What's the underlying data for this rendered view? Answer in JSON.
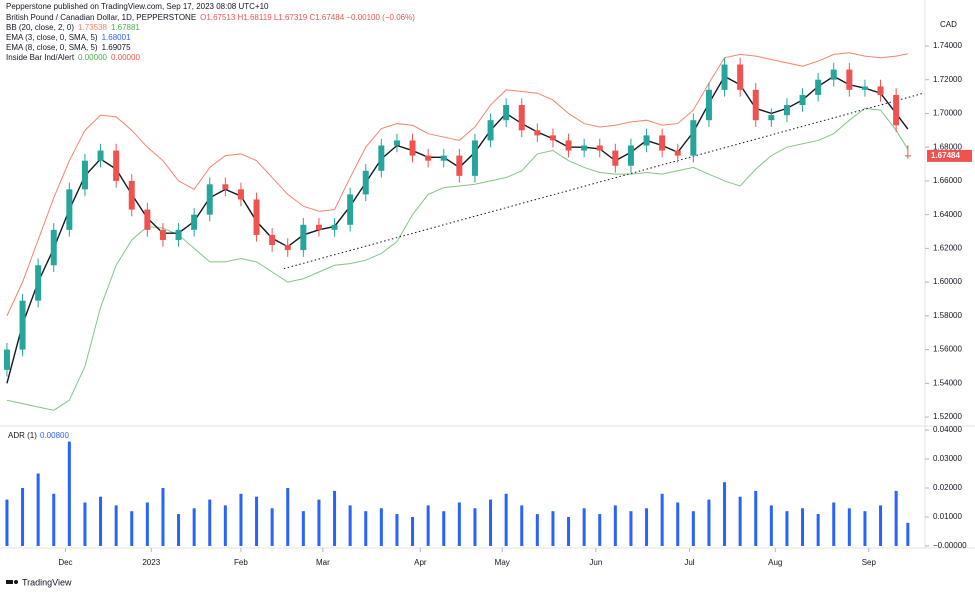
{
  "publisher": "Pepperstone published on TradingView.com, Sep 17, 2023 08:08 UTC+10",
  "currency": "CAD",
  "footer": "TradingView",
  "legend": [
    {
      "label": "British Pound / Canadian Dollar, 1D, PEPPERSTONE",
      "values": [
        {
          "text": "O1.67513 H1.68119 L1.67319 C1.67484 −0.00100 (−0.06%)",
          "color": "#ef5350"
        }
      ]
    },
    {
      "label": "BB (20, close, 2, 0)",
      "values": [
        {
          "text": "1.73538",
          "color": "#f5836b"
        },
        {
          "text": "1.67881",
          "color": "#4caf50"
        }
      ]
    },
    {
      "label": "EMA (3, close, 0, SMA, 5)",
      "values": [
        {
          "text": "1.68001",
          "color": "#2962ff"
        }
      ]
    },
    {
      "label": "EMA (8, close, 0, SMA, 5)",
      "values": [
        {
          "text": "1.69075",
          "color": "#131722"
        }
      ]
    },
    {
      "label": "Inside Bar Ind/Alert",
      "values": [
        {
          "text": "0.00000",
          "color": "#4caf50"
        },
        {
          "text": "0.00000",
          "color": "#ef5350"
        }
      ]
    }
  ],
  "chart_data": [
    {
      "type": "candlestick",
      "x": [
        0,
        4,
        8,
        12,
        16,
        20,
        24,
        28,
        32,
        36,
        40,
        44,
        48,
        52,
        56,
        60,
        64,
        68,
        72,
        76,
        80,
        84,
        88,
        92,
        96,
        100,
        104,
        108,
        112,
        116,
        120,
        124,
        128,
        132,
        136,
        140,
        144,
        148,
        152,
        156,
        160,
        164,
        168,
        172,
        176,
        180,
        184,
        188,
        192,
        196,
        200,
        204,
        208,
        212,
        216,
        220,
        224,
        228,
        231
      ],
      "open": [
        1.548,
        1.56,
        1.589,
        1.61,
        1.631,
        1.655,
        1.672,
        1.678,
        1.66,
        1.643,
        1.631,
        1.625,
        1.631,
        1.64,
        1.658,
        1.655,
        1.649,
        1.628,
        1.622,
        1.619,
        1.634,
        1.631,
        1.634,
        1.652,
        1.666,
        1.681,
        1.684,
        1.675,
        1.672,
        1.675,
        1.663,
        1.684,
        1.696,
        1.705,
        1.69,
        1.687,
        1.684,
        1.678,
        1.681,
        1.678,
        1.669,
        1.681,
        1.687,
        1.678,
        1.675,
        1.696,
        1.714,
        1.729,
        1.714,
        1.696,
        1.699,
        1.705,
        1.711,
        1.72,
        1.726,
        1.714,
        1.716,
        1.711,
        1.67513
      ],
      "high": [
        1.564,
        1.593,
        1.614,
        1.635,
        1.659,
        1.676,
        1.682,
        1.682,
        1.664,
        1.647,
        1.635,
        1.635,
        1.644,
        1.662,
        1.662,
        1.659,
        1.653,
        1.632,
        1.626,
        1.638,
        1.638,
        1.638,
        1.656,
        1.67,
        1.685,
        1.688,
        1.688,
        1.679,
        1.679,
        1.679,
        1.688,
        1.7,
        1.709,
        1.709,
        1.694,
        1.691,
        1.688,
        1.685,
        1.685,
        1.682,
        1.685,
        1.691,
        1.691,
        1.682,
        1.7,
        1.718,
        1.733,
        1.733,
        1.718,
        1.703,
        1.709,
        1.715,
        1.724,
        1.73,
        1.73,
        1.72,
        1.72,
        1.715,
        1.68119
      ],
      "low": [
        1.544,
        1.556,
        1.585,
        1.606,
        1.627,
        1.651,
        1.668,
        1.656,
        1.639,
        1.627,
        1.621,
        1.621,
        1.627,
        1.636,
        1.651,
        1.645,
        1.624,
        1.618,
        1.615,
        1.615,
        1.627,
        1.627,
        1.63,
        1.648,
        1.662,
        1.677,
        1.671,
        1.668,
        1.668,
        1.659,
        1.659,
        1.68,
        1.692,
        1.686,
        1.683,
        1.68,
        1.674,
        1.674,
        1.674,
        1.665,
        1.665,
        1.677,
        1.674,
        1.671,
        1.671,
        1.692,
        1.71,
        1.71,
        1.692,
        1.692,
        1.695,
        1.701,
        1.707,
        1.716,
        1.71,
        1.71,
        1.707,
        1.689,
        1.67319
      ],
      "close": [
        1.56,
        1.589,
        1.61,
        1.631,
        1.655,
        1.672,
        1.678,
        1.66,
        1.643,
        1.631,
        1.625,
        1.631,
        1.64,
        1.658,
        1.655,
        1.649,
        1.628,
        1.622,
        1.619,
        1.634,
        1.631,
        1.634,
        1.652,
        1.666,
        1.681,
        1.684,
        1.675,
        1.672,
        1.675,
        1.663,
        1.684,
        1.696,
        1.705,
        1.69,
        1.687,
        1.684,
        1.678,
        1.681,
        1.678,
        1.669,
        1.681,
        1.687,
        1.678,
        1.675,
        1.696,
        1.714,
        1.729,
        1.714,
        1.696,
        1.699,
        1.705,
        1.711,
        1.72,
        1.726,
        1.714,
        1.716,
        1.711,
        1.693,
        1.67484
      ],
      "up_color": "#26a69a",
      "down_color": "#ef5350",
      "lines": [
        {
          "color": "#f5836b",
          "values": [
            1.58,
            1.6,
            1.625,
            1.65,
            1.672,
            1.69,
            1.699,
            1.698,
            1.69,
            1.68,
            1.672,
            1.66,
            1.655,
            1.668,
            1.675,
            1.676,
            1.672,
            1.662,
            1.652,
            1.645,
            1.642,
            1.643,
            1.662,
            1.68,
            1.691,
            1.694,
            1.693,
            1.688,
            1.686,
            1.684,
            1.692,
            1.705,
            1.714,
            1.713,
            1.712,
            1.708,
            1.7,
            1.694,
            1.692,
            1.693,
            1.695,
            1.696,
            1.693,
            1.694,
            1.702,
            1.718,
            1.733,
            1.735,
            1.734,
            1.732,
            1.73,
            1.728,
            1.731,
            1.735,
            1.736,
            1.734,
            1.733,
            1.734,
            1.73538
          ]
        },
        {
          "color": "#81c784",
          "values": [
            1.53,
            1.528,
            1.526,
            1.524,
            1.53,
            1.55,
            1.585,
            1.61,
            1.625,
            1.633,
            1.632,
            1.628,
            1.62,
            1.612,
            1.612,
            1.614,
            1.612,
            1.606,
            1.6,
            1.602,
            1.606,
            1.61,
            1.611,
            1.613,
            1.617,
            1.624,
            1.64,
            1.652,
            1.656,
            1.657,
            1.658,
            1.66,
            1.662,
            1.666,
            1.676,
            1.678,
            1.672,
            1.668,
            1.665,
            1.664,
            1.664,
            1.665,
            1.664,
            1.666,
            1.668,
            1.664,
            1.66,
            1.657,
            1.667,
            1.675,
            1.68,
            1.682,
            1.684,
            1.688,
            1.696,
            1.703,
            1.702,
            1.69,
            1.67881
          ]
        },
        {
          "color": "#131722",
          "values": [
            1.54,
            1.575,
            1.6,
            1.62,
            1.643,
            1.663,
            1.673,
            1.667,
            1.652,
            1.638,
            1.629,
            1.629,
            1.636,
            1.65,
            1.655,
            1.651,
            1.636,
            1.626,
            1.621,
            1.628,
            1.631,
            1.633,
            1.645,
            1.659,
            1.673,
            1.681,
            1.678,
            1.674,
            1.674,
            1.668,
            1.677,
            1.69,
            1.7,
            1.694,
            1.689,
            1.685,
            1.68,
            1.68,
            1.679,
            1.672,
            1.677,
            1.684,
            1.681,
            1.677,
            1.689,
            1.706,
            1.722,
            1.717,
            1.703,
            1.7,
            1.703,
            1.708,
            1.716,
            1.722,
            1.717,
            1.715,
            1.712,
            1.7,
            1.69075
          ]
        }
      ],
      "trendline": {
        "x": [
          71,
          235
        ],
        "y": [
          1.608,
          1.712
        ],
        "color": "#131722"
      },
      "xlim": [
        -0.5,
        235.4
      ],
      "xticks": [
        {
          "value": 15,
          "label": "Dec"
        },
        {
          "value": 37,
          "label": "2023"
        },
        {
          "value": 60,
          "label": "Feb"
        },
        {
          "value": 81,
          "label": "Mar"
        },
        {
          "value": 106,
          "label": "Apr"
        },
        {
          "value": 127,
          "label": "May"
        },
        {
          "value": 151,
          "label": "Jun"
        },
        {
          "value": 175,
          "label": "Jul"
        },
        {
          "value": 197,
          "label": "Aug"
        },
        {
          "value": 221,
          "label": "Sep"
        }
      ],
      "ylim": [
        1.5153,
        1.7554
      ],
      "yticks": [
        {
          "value": 1.52,
          "label": "1.52000"
        },
        {
          "value": 1.54,
          "label": "1.54000"
        },
        {
          "value": 1.56,
          "label": "1.56000"
        },
        {
          "value": 1.58,
          "label": "1.58000"
        },
        {
          "value": 1.6,
          "label": "1.60000"
        },
        {
          "value": 1.62,
          "label": "1.62000"
        },
        {
          "value": 1.64,
          "label": "1.64000"
        },
        {
          "value": 1.66,
          "label": "1.66000"
        },
        {
          "value": 1.68,
          "label": "1.68000"
        },
        {
          "value": 1.7,
          "label": "1.70000"
        },
        {
          "value": 1.72,
          "label": "1.72000"
        },
        {
          "value": 1.74,
          "label": "1.74000"
        }
      ]
    },
    {
      "type": "bar",
      "title": "ADR (1)",
      "title_value": "0.00800",
      "color": "#2962ff",
      "values": [
        0.016,
        0.02,
        0.025,
        0.018,
        0.036,
        0.015,
        0.017,
        0.014,
        0.012,
        0.015,
        0.02,
        0.011,
        0.013,
        0.016,
        0.014,
        0.018,
        0.017,
        0.013,
        0.02,
        0.012,
        0.016,
        0.019,
        0.014,
        0.012,
        0.013,
        0.011,
        0.01,
        0.014,
        0.012,
        0.015,
        0.013,
        0.016,
        0.018,
        0.014,
        0.011,
        0.012,
        0.01,
        0.013,
        0.011,
        0.014,
        0.012,
        0.013,
        0.018,
        0.015,
        0.012,
        0.016,
        0.022,
        0.017,
        0.019,
        0.014,
        0.012,
        0.013,
        0.011,
        0.015,
        0.013,
        0.012,
        0.014,
        0.019,
        0.008
      ],
      "ylim": [
        -0.0007,
        0.0407
      ],
      "yticks": [
        {
          "value": 0.04,
          "label": "0.04000"
        },
        {
          "value": 0.03,
          "label": "0.03000"
        },
        {
          "value": 0.02,
          "label": "0.02000"
        },
        {
          "value": 0.01,
          "label": "0.01000"
        },
        {
          "value": 0,
          "label": "−0.00000"
        }
      ]
    }
  ]
}
